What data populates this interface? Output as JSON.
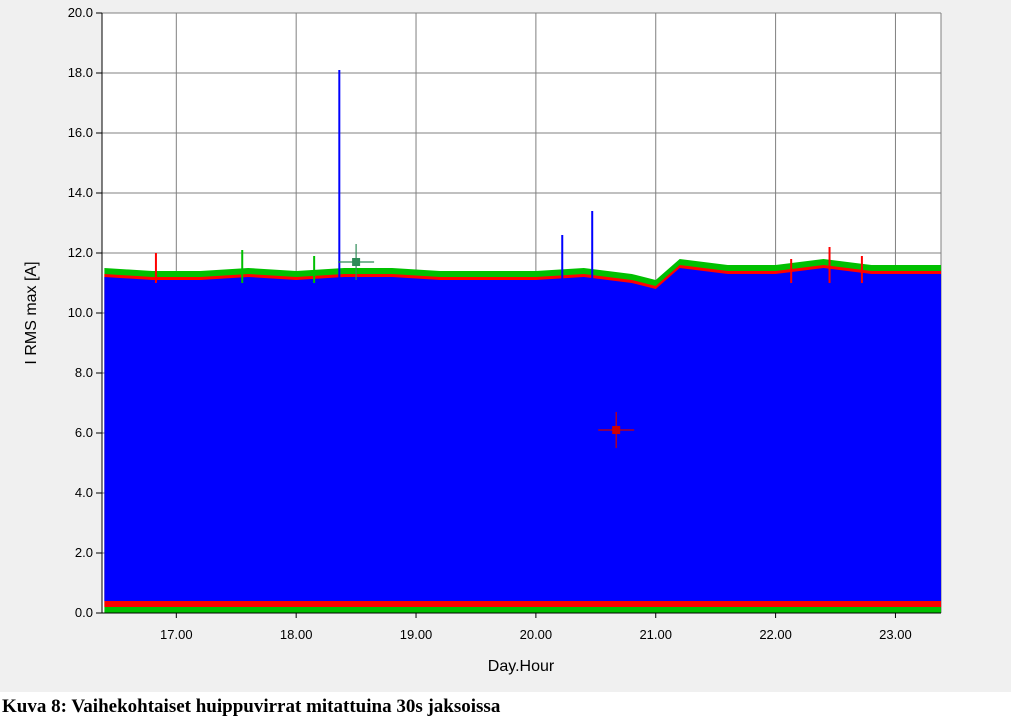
{
  "chart_data": {
    "type": "area",
    "xlabel": "Day.Hour",
    "ylabel": "I RMS max [A]",
    "xlim": [
      16.38,
      23.38
    ],
    "ylim": [
      0,
      20
    ],
    "x_ticks": [
      17,
      18,
      19,
      20,
      21,
      22,
      23
    ],
    "x_tick_labels": [
      "17.00",
      "18.00",
      "19.00",
      "20.00",
      "21.00",
      "22.00",
      "23.00"
    ],
    "y_ticks": [
      0,
      2,
      4,
      6,
      8,
      10,
      12,
      14,
      16,
      18,
      20
    ],
    "y_tick_labels": [
      "0.0",
      "2.0",
      "4.0",
      "6.0",
      "8.0",
      "10.0",
      "12.0",
      "14.0",
      "16.0",
      "18.0",
      "20.0"
    ],
    "grid": true,
    "series": [
      {
        "color": "#00c000",
        "x": [
          16.4,
          16.8,
          17.2,
          17.6,
          18.0,
          18.4,
          18.8,
          19.2,
          19.6,
          20.0,
          20.4,
          20.8,
          21.0,
          21.2,
          21.6,
          22.0,
          22.4,
          22.8,
          23.2,
          23.38
        ],
        "values": [
          11.5,
          11.4,
          11.4,
          11.5,
          11.4,
          11.5,
          11.5,
          11.4,
          11.4,
          11.4,
          11.5,
          11.3,
          11.1,
          11.8,
          11.6,
          11.6,
          11.8,
          11.6,
          11.6,
          11.6
        ]
      },
      {
        "color": "#ff0000",
        "x": [
          16.4,
          16.8,
          17.2,
          17.6,
          18.0,
          18.4,
          18.8,
          19.2,
          19.6,
          20.0,
          20.4,
          20.8,
          21.0,
          21.2,
          21.6,
          22.0,
          22.4,
          22.8,
          23.2,
          23.38
        ],
        "values": [
          11.3,
          11.2,
          11.2,
          11.3,
          11.2,
          11.3,
          11.3,
          11.2,
          11.2,
          11.2,
          11.3,
          11.1,
          10.9,
          11.6,
          11.4,
          11.4,
          11.6,
          11.4,
          11.4,
          11.4
        ],
        "min_values": [
          0.2,
          0.2,
          0.2,
          0.2,
          0.2,
          0.2,
          0.2,
          0.2,
          0.2,
          0.2,
          0.2,
          0.2,
          0.2,
          0.2,
          0.2,
          0.2,
          0.2,
          0.2,
          0.2,
          0.2
        ]
      },
      {
        "color": "#0000ff",
        "x": [
          16.4,
          16.8,
          17.2,
          17.6,
          18.0,
          18.4,
          18.8,
          19.2,
          19.6,
          20.0,
          20.4,
          20.8,
          21.0,
          21.2,
          21.6,
          22.0,
          22.4,
          22.8,
          23.2,
          23.38
        ],
        "values": [
          11.2,
          11.1,
          11.1,
          11.2,
          11.1,
          11.2,
          11.2,
          11.1,
          11.1,
          11.1,
          11.2,
          11.0,
          10.8,
          11.5,
          11.3,
          11.3,
          11.5,
          11.3,
          11.3,
          11.3
        ],
        "min_values": [
          0.4,
          0.4,
          0.4,
          0.4,
          0.4,
          0.4,
          0.4,
          0.4,
          0.4,
          0.4,
          0.4,
          0.4,
          0.4,
          0.4,
          0.4,
          0.4,
          0.4,
          0.4,
          0.4,
          0.4
        ]
      }
    ],
    "spikes": [
      {
        "x": 16.83,
        "y": 12.0,
        "color": "#ff0000"
      },
      {
        "x": 17.55,
        "y": 12.1,
        "color": "#00c000"
      },
      {
        "x": 18.15,
        "y": 11.9,
        "color": "#00c000"
      },
      {
        "x": 18.36,
        "y": 18.1,
        "color": "#0000ff"
      },
      {
        "x": 20.22,
        "y": 12.6,
        "color": "#0000ff"
      },
      {
        "x": 20.47,
        "y": 13.4,
        "color": "#0000ff"
      },
      {
        "x": 22.13,
        "y": 11.8,
        "color": "#ff0000"
      },
      {
        "x": 22.45,
        "y": 12.2,
        "color": "#ff0000"
      },
      {
        "x": 22.72,
        "y": 11.9,
        "color": "#ff0000"
      }
    ],
    "cursors": [
      {
        "x": 18.5,
        "y": 11.7,
        "color": "#2e8b57"
      },
      {
        "x": 20.67,
        "y": 6.1,
        "color": "#d00000"
      }
    ]
  },
  "caption": "Kuva 8: Vaihekohtaiset huippuvirrat mitattuina 30s jaksoissa"
}
